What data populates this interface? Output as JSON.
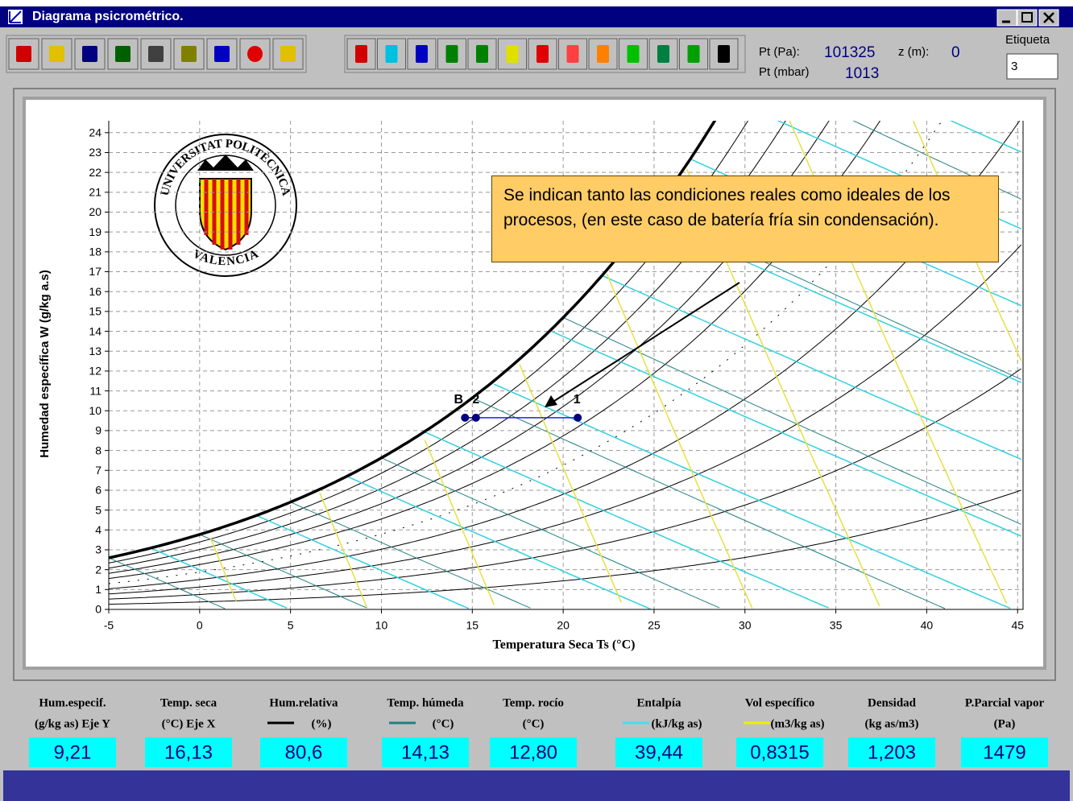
{
  "window": {
    "title": "Diagrama psicrométrico."
  },
  "status": {
    "pt_pa_label": "Pt (Pa):",
    "pt_pa": 101325,
    "z_label": "z (m):",
    "z": 0,
    "pt_mbar_label": "Pt (mbar)",
    "pt_mbar": 1013,
    "etiqueta_label": "Etiqueta",
    "etiqueta": "3"
  },
  "chart_data": {
    "type": "psychrometric",
    "xlabel": "Temperatura Seca   Ts (°C)",
    "ylabel": "Humedad específica   W   (g/kg a.s)",
    "xlim": [
      -5,
      45.3
    ],
    "ylim": [
      0,
      24.6
    ],
    "xticks": [
      -5,
      0,
      5,
      10,
      15,
      20,
      25,
      30,
      35,
      40,
      45
    ],
    "yticks": [
      0,
      1,
      2,
      3,
      4,
      5,
      6,
      7,
      8,
      9,
      10,
      11,
      12,
      13,
      14,
      15,
      16,
      17,
      18,
      19,
      20,
      21,
      22,
      23,
      24
    ],
    "grid": true,
    "points": [
      {
        "label": "B",
        "x": 14.6,
        "y": 9.65
      },
      {
        "label": "2",
        "x": 15.2,
        "y": 9.65
      },
      {
        "label": "1",
        "x": 20.8,
        "y": 9.65
      }
    ],
    "annotation": "Se indican tanto las condiciones reales como ideales de los procesos, (en este caso de batería fría sin condensación).",
    "logo": {
      "top": "UNIVERSITAT POLITÈCNICA",
      "bottom": "VALENCIA"
    }
  },
  "readouts": [
    {
      "name": "Hum.especif.",
      "unit": "(g/kg as) Eje Y",
      "value": "9,21"
    },
    {
      "name": "Temp. seca",
      "unit": "(°C)  Eje X",
      "value": "16,13"
    },
    {
      "name": "Hum.relativa",
      "unit": "(%)",
      "value": "80,6"
    },
    {
      "name": "Temp. húmeda",
      "unit": "(°C)",
      "value": "14,13"
    },
    {
      "name": "Temp. rocío",
      "unit": "(°C)",
      "value": "12,80"
    },
    {
      "name": "Entalpía",
      "unit": "(kJ/kg as)",
      "value": "39,44"
    },
    {
      "name": "Vol específico",
      "unit": "(m3/kg as)",
      "value": "0,8315"
    },
    {
      "name": "Densidad",
      "unit": "(kg as/m3)",
      "value": "1,203"
    },
    {
      "name": "P.Parcial vapor",
      "unit": "(Pa)",
      "value": "1479"
    }
  ]
}
